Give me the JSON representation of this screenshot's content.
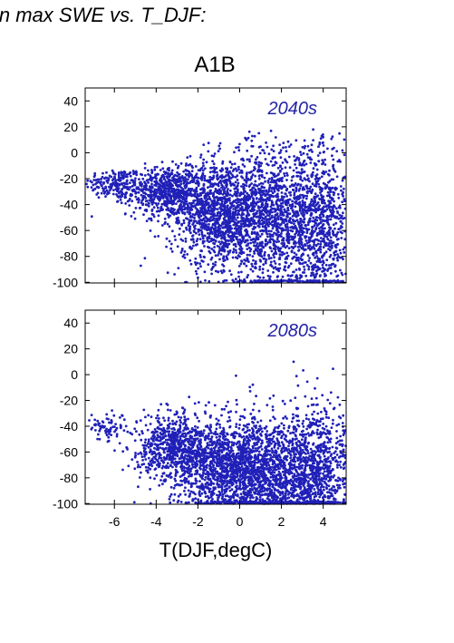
{
  "header": {
    "caption": "in max SWE vs. T_DJF:",
    "scenario": "A1B"
  },
  "xlabel": "T(DJF,degC)",
  "chart_data": {
    "type": "scatter",
    "title": "A1B",
    "xlabel": "T(DJF,degC)",
    "ylabel": "",
    "xlim": [
      -7.4,
      5.1
    ],
    "ylim": [
      -100.5,
      50
    ],
    "x_ticks": [
      -6,
      -4,
      -2,
      0,
      2,
      4
    ],
    "y_ticks": [
      -100,
      -80,
      -60,
      -40,
      -20,
      0,
      20,
      40
    ],
    "point_color": "#2020b8",
    "label_color": "#2323a8",
    "grid": false,
    "panels": [
      {
        "label": "2040s",
        "description_of_distribution": "dense cloud of ~4000 points",
        "clusters": [
          {
            "x_mean": -6.0,
            "x_sd": 0.7,
            "y_mean": -24,
            "y_sd": 6,
            "n": 180
          },
          {
            "x_mean": -3.6,
            "x_sd": 0.9,
            "y_mean": -30,
            "y_sd": 9,
            "n": 600
          },
          {
            "x_mean": -1.2,
            "x_sd": 1.1,
            "y_mean": -45,
            "y_sd": 20,
            "n": 1100
          },
          {
            "x_mean": 1.4,
            "x_sd": 1.3,
            "y_mean": -52,
            "y_sd": 28,
            "n": 1400
          },
          {
            "x_mean": 3.8,
            "x_sd": 0.8,
            "y_mean": -55,
            "y_sd": 32,
            "n": 800
          }
        ]
      },
      {
        "label": "2080s",
        "description_of_distribution": "dense cloud of ~4000 points, shifted warmer and lower",
        "clusters": [
          {
            "x_mean": -6.2,
            "x_sd": 0.6,
            "y_mean": -40,
            "y_sd": 6,
            "n": 80
          },
          {
            "x_mean": -3.2,
            "x_sd": 0.9,
            "y_mean": -56,
            "y_sd": 12,
            "n": 650
          },
          {
            "x_mean": -0.8,
            "x_sd": 1.2,
            "y_mean": -72,
            "y_sd": 18,
            "n": 1100
          },
          {
            "x_mean": 1.6,
            "x_sd": 1.3,
            "y_mean": -78,
            "y_sd": 22,
            "n": 1500
          },
          {
            "x_mean": 3.9,
            "x_sd": 0.8,
            "y_mean": -75,
            "y_sd": 26,
            "n": 700
          }
        ]
      }
    ]
  }
}
